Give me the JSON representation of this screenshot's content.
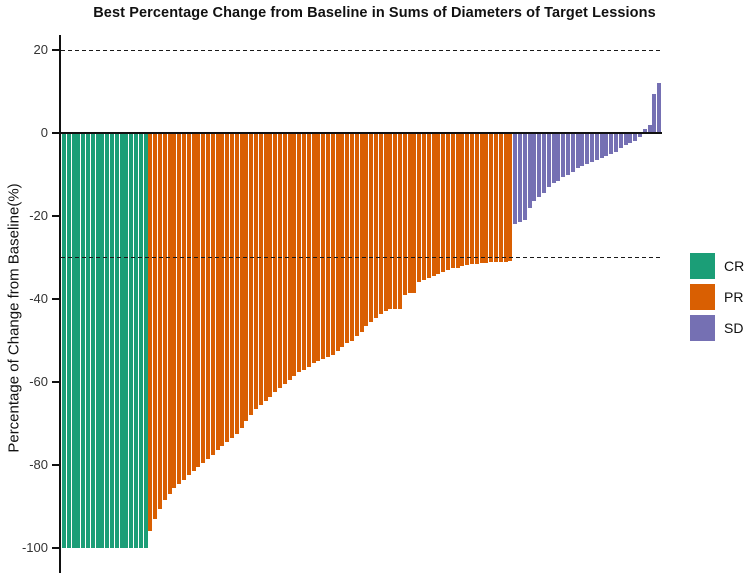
{
  "title": "Best Percentage Change from Baseline in Sums of Diameters of Target Lessions",
  "y_axis": {
    "label": "Percentage of Change from Baseline(%)",
    "ticks": [
      20,
      0,
      -20,
      -40,
      -60,
      -80,
      -100
    ]
  },
  "legend": {
    "items": [
      {
        "label": "CR",
        "color": "#1B9E77"
      },
      {
        "label": "PR",
        "color": "#D95F02"
      },
      {
        "label": "SD",
        "color": "#7570B3"
      }
    ]
  },
  "chart_data": {
    "type": "bar",
    "title": "Best Percentage Change from Baseline in Sums of Diameters of Target Lessions",
    "xlabel": "",
    "ylabel": "Percentage of Change from Baseline(%)",
    "ylim": [
      -100,
      20
    ],
    "grid": false,
    "legend_position": "right",
    "reference_lines": [
      20,
      -30
    ],
    "categories": [],
    "series": [
      {
        "name": "CR",
        "color": "#1B9E77",
        "values": [
          -100,
          -100,
          -100,
          -100,
          -100,
          -100,
          -100,
          -100,
          -100,
          -100,
          -100,
          -100,
          -100,
          -100,
          -100,
          -100,
          -100,
          -100
        ]
      },
      {
        "name": "PR",
        "color": "#D95F02",
        "values": [
          -96,
          -93,
          -90.5,
          -88.5,
          -87,
          -85.5,
          -84.5,
          -83.5,
          -82.5,
          -81.5,
          -80.5,
          -79.5,
          -78.5,
          -77.5,
          -76.5,
          -75.5,
          -74.5,
          -73.5,
          -72.5,
          -71,
          -69.5,
          -68,
          -66.5,
          -65.5,
          -64.5,
          -63.5,
          -62.5,
          -61.5,
          -60.5,
          -59.5,
          -58.5,
          -57.5,
          -57,
          -56.5,
          -55.5,
          -55,
          -54.5,
          -54,
          -53.5,
          -52.5,
          -51.5,
          -50.5,
          -50,
          -49,
          -48,
          -46.5,
          -45.5,
          -44.5,
          -43.5,
          -43,
          -42.5,
          -42.5,
          -42.5,
          -39,
          -38.5,
          -38.5,
          -36,
          -35.5,
          -35,
          -34.5,
          -34,
          -33.5,
          -33,
          -32.5,
          -32.5,
          -32,
          -31.8,
          -31.6,
          -31.5,
          -31.4,
          -31.3,
          -31.2,
          -31.1,
          -31,
          -31,
          -30.8
        ]
      },
      {
        "name": "SD",
        "color": "#7570B3",
        "values": [
          -22,
          -21.5,
          -21,
          -18,
          -16.5,
          -15.5,
          -14.5,
          -13,
          -12,
          -11.5,
          -10.5,
          -10,
          -9.5,
          -8.5,
          -8,
          -7.5,
          -7,
          -6.5,
          -6,
          -5.5,
          -5,
          -4.5,
          -3.5,
          -3,
          -2.5,
          -2,
          -1,
          1,
          2,
          9.5,
          12
        ]
      }
    ]
  }
}
